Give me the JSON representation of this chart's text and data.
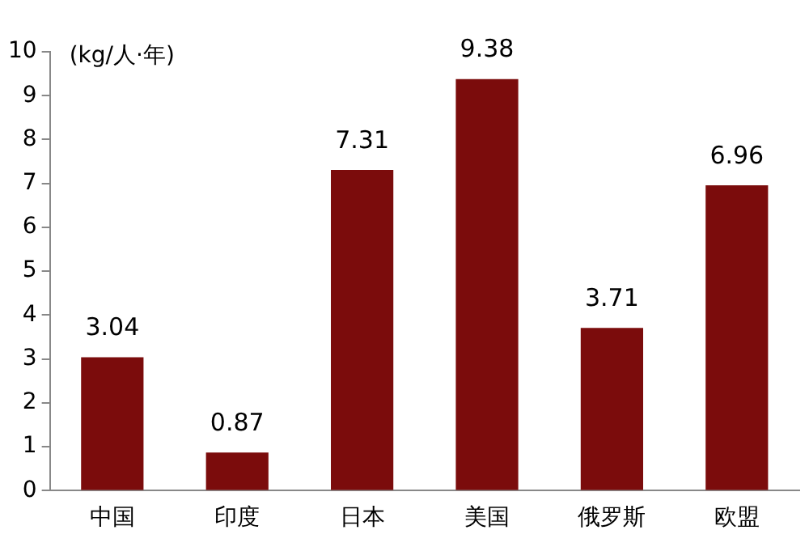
{
  "chart_data": {
    "type": "bar",
    "ylabel": "(kg/人·年)",
    "categories": [
      "中国",
      "印度",
      "日本",
      "美国",
      "俄罗斯",
      "欧盟"
    ],
    "values": [
      3.04,
      0.87,
      7.31,
      9.38,
      3.71,
      6.96
    ],
    "color": "#7b0c0c",
    "ylim": [
      0,
      10
    ],
    "yticks": [
      0,
      1,
      2,
      3,
      4,
      5,
      6,
      7,
      8,
      9,
      10
    ],
    "data_labels": true
  }
}
